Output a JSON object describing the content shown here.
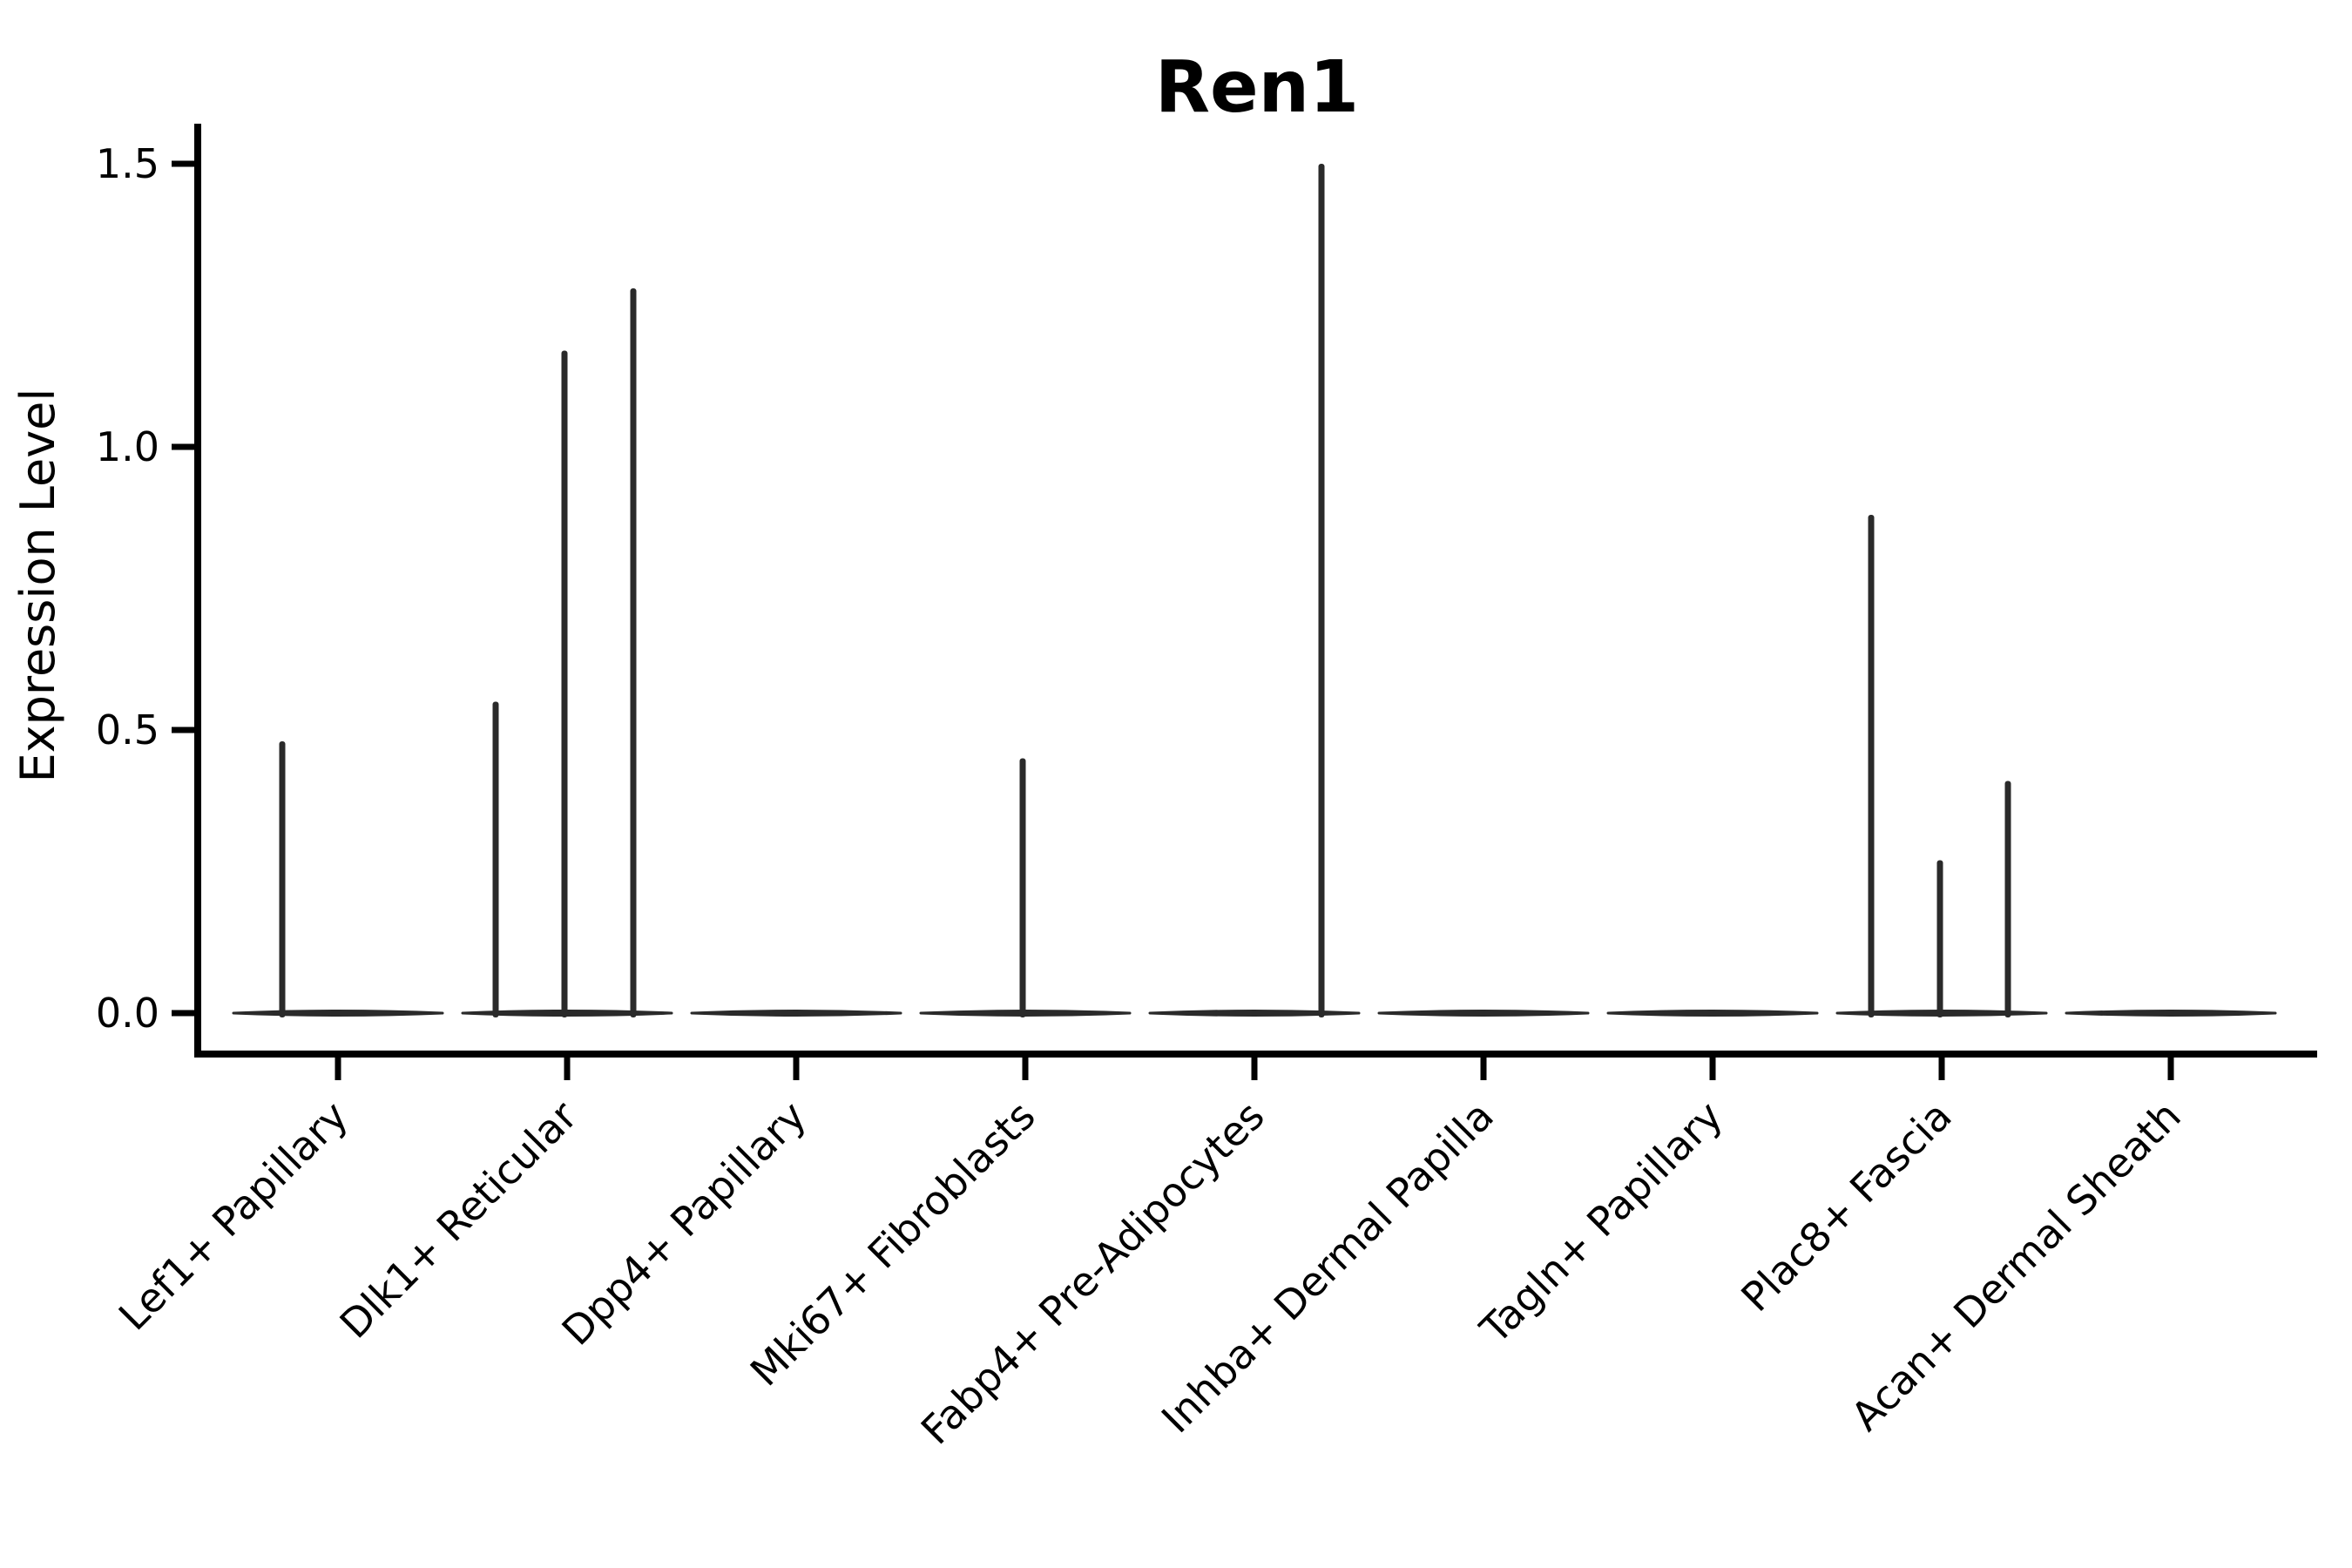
{
  "title": "Ren1",
  "ylabel": "Expression Level",
  "chart_data": {
    "type": "violin",
    "title": "Ren1",
    "xlabel": "",
    "ylabel": "Expression Level",
    "ylim": [
      -0.07,
      1.57
    ],
    "yticks": [
      "0.0",
      "0.5",
      "1.0",
      "1.5"
    ],
    "ytick_values": [
      0.0,
      0.5,
      1.0,
      1.5
    ],
    "x_tick_rotation": 45,
    "grid": false,
    "legend": "none",
    "categories": [
      "Lef1+ Papillary",
      "Dlk1+ Reticular",
      "Dpp4+ Papillary",
      "Mki67+ Fibroblasts",
      "Fabp4+ Pre-Adipocytes",
      "Inhba+ Dermal Papilla",
      "Tagln+ Papillary",
      "Plac8+ Fascia",
      "Acan+ Dermal Sheath"
    ],
    "violins": [
      {
        "category": "Lef1+ Papillary",
        "base_value": 0.0,
        "spikes": [
          {
            "value": 0.48,
            "offset": -64
          }
        ]
      },
      {
        "category": "Dlk1+ Reticular",
        "base_value": 0.0,
        "spikes": [
          {
            "value": 0.55,
            "offset": -82
          },
          {
            "value": 1.17,
            "offset": -3
          },
          {
            "value": 1.28,
            "offset": 76
          }
        ]
      },
      {
        "category": "Dpp4+ Papillary",
        "base_value": 0.0,
        "spikes": []
      },
      {
        "category": "Mki67+ Fibroblasts",
        "base_value": 0.0,
        "spikes": [
          {
            "value": 0.45,
            "offset": -3
          }
        ]
      },
      {
        "category": "Fabp4+ Pre-Adipocytes",
        "base_value": 0.0,
        "spikes": [
          {
            "value": 1.5,
            "offset": 77
          }
        ]
      },
      {
        "category": "Inhba+ Dermal Papilla",
        "base_value": 0.0,
        "spikes": []
      },
      {
        "category": "Tagln+ Papillary",
        "base_value": 0.0,
        "spikes": []
      },
      {
        "category": "Plac8+ Fascia",
        "base_value": 0.0,
        "spikes": [
          {
            "value": 0.88,
            "offset": -81
          },
          {
            "value": 0.27,
            "offset": -2
          },
          {
            "value": 0.41,
            "offset": 76
          }
        ]
      },
      {
        "category": "Acan+ Dermal Sheath",
        "base_value": 0.0,
        "spikes": []
      }
    ],
    "colors": {
      "violin_line": "#2a2a2a",
      "axis": "#000000",
      "text": "#000000",
      "background": "#ffffff"
    }
  }
}
